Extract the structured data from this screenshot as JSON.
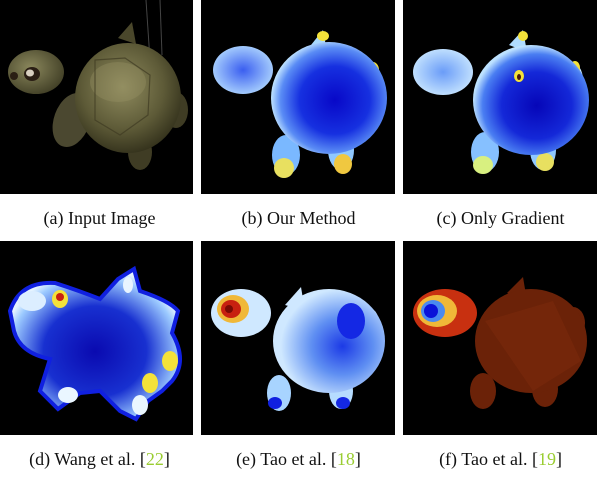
{
  "figure": {
    "panels": [
      {
        "id": "a",
        "caption_prefix": "(a) ",
        "caption_text": "Input Image",
        "cite": "",
        "cite_close": ""
      },
      {
        "id": "b",
        "caption_prefix": "(b) ",
        "caption_text": "Our Method",
        "cite": "",
        "cite_close": ""
      },
      {
        "id": "c",
        "caption_prefix": "(c) ",
        "caption_text": "Only Gradient",
        "cite": "",
        "cite_close": ""
      },
      {
        "id": "d",
        "caption_prefix": "(d) ",
        "caption_text": "Wang et al. [",
        "cite": "22",
        "cite_close": "]"
      },
      {
        "id": "e",
        "caption_prefix": "(e) ",
        "caption_text": "Tao et al. [",
        "cite": "18",
        "cite_close": "]"
      },
      {
        "id": "f",
        "caption_prefix": "(f) ",
        "caption_text": "Tao et al. [",
        "cite": "19",
        "cite_close": "]"
      }
    ],
    "colors": {
      "background": "#000000",
      "cite": "#9acd32",
      "deep_blue": "#0a12d8",
      "mid_blue": "#3d6cf0",
      "light_blue": "#c6e6ff",
      "yellow": "#f4e23a",
      "red": "#c82010",
      "brown": "#6b2208",
      "turtle_green": "#5d5a37"
    }
  }
}
